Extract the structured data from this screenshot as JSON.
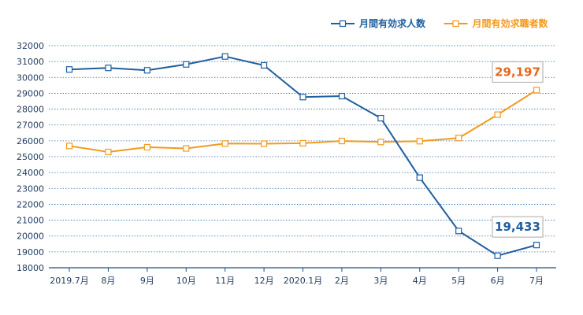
{
  "chart_data": {
    "type": "line",
    "categories": [
      "2019.7月",
      "8月",
      "9月",
      "10月",
      "11月",
      "12月",
      "2020.1月",
      "2月",
      "3月",
      "4月",
      "5月",
      "6月",
      "7月"
    ],
    "series": [
      {
        "name": "月間有効求人数",
        "color": "#1f5f9f",
        "values": [
          30500,
          30600,
          30450,
          30820,
          31320,
          30760,
          28760,
          28820,
          27430,
          23680,
          20320,
          18760,
          19433
        ]
      },
      {
        "name": "月間有効求職者数",
        "color": "#f39a1d",
        "values": [
          25680,
          25300,
          25600,
          25520,
          25830,
          25820,
          25850,
          25990,
          25930,
          25980,
          26180,
          27650,
          29197
        ]
      }
    ],
    "ylim": [
      18000,
      32000
    ],
    "yticks": [
      18000,
      19000,
      20000,
      21000,
      22000,
      23000,
      24000,
      25000,
      26000,
      27000,
      28000,
      29000,
      30000,
      31000,
      32000
    ],
    "grid": true,
    "legend_position": "top-right",
    "annotations": [
      {
        "series": "月間有効求職者数",
        "category": "7月",
        "label": "29,197",
        "color": "#e8671c"
      },
      {
        "series": "月間有効求人数",
        "category": "7月",
        "label": "19,433",
        "color": "#1f5f9f"
      }
    ]
  }
}
